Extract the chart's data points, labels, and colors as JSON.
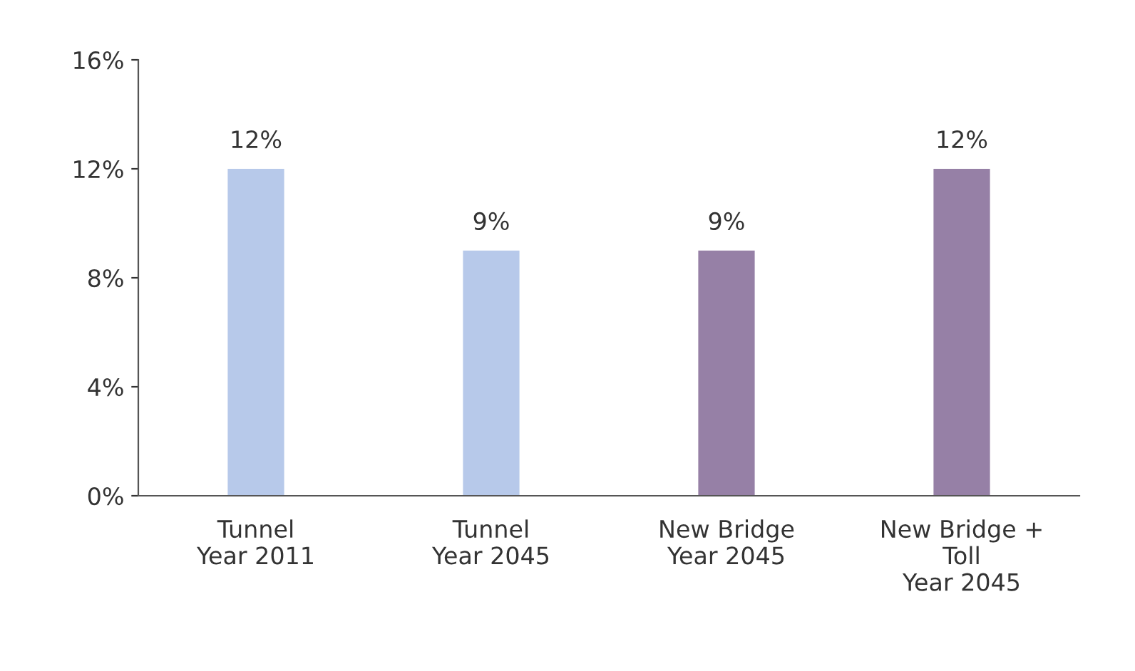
{
  "chart_data": {
    "type": "bar",
    "categories": [
      "Tunnel\nYear 2011",
      "Tunnel\nYear 2045",
      "New Bridge\nYear 2045",
      "New Bridge +\nToll\nYear 2045"
    ],
    "values": [
      12,
      9,
      9,
      12
    ],
    "colors": [
      "#b7c9ea",
      "#b7c9ea",
      "#9680a6",
      "#9680a6"
    ],
    "value_labels": [
      "12%",
      "9%",
      "9%",
      "12%"
    ],
    "ylim": [
      0,
      16
    ],
    "yticks": [
      {
        "value": 0,
        "label": "0%"
      },
      {
        "value": 4,
        "label": "4%"
      },
      {
        "value": 8,
        "label": "8%"
      },
      {
        "value": 12,
        "label": "12%"
      },
      {
        "value": 16,
        "label": "16%"
      }
    ],
    "grid": false,
    "legend": false
  }
}
